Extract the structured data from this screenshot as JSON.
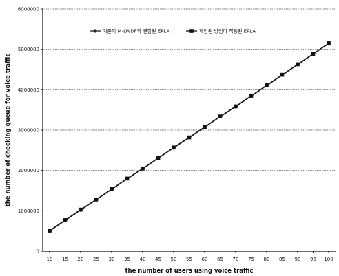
{
  "chart_data": {
    "type": "line",
    "title": "",
    "xlabel": "the number of users using voice traffic",
    "ylabel": "the number of checking queue for voice traffic",
    "x": [
      10,
      15,
      20,
      25,
      30,
      35,
      40,
      45,
      50,
      55,
      60,
      65,
      70,
      75,
      80,
      85,
      90,
      95,
      100
    ],
    "ylim": [
      0,
      6000000
    ],
    "yticks": [
      "0",
      "1000000",
      "2000000",
      "3000000",
      "4000000",
      "5000000",
      "6000000"
    ],
    "grid": "horizontal",
    "legend_position": "top",
    "series": [
      {
        "name": "기존의 M-LWDF와 결합된 EPLA",
        "marker": "diamond",
        "color": "#222222",
        "values": [
          500000,
          760000,
          1020000,
          1270000,
          1530000,
          1790000,
          2040000,
          2300000,
          2560000,
          2810000,
          3070000,
          3330000,
          3580000,
          3840000,
          4100000,
          4360000,
          4620000,
          4880000,
          5140000
        ]
      },
      {
        "name": "제안된 방법이 적용된 EPLA",
        "marker": "square",
        "color": "#111111",
        "values": [
          510000,
          770000,
          1030000,
          1280000,
          1540000,
          1800000,
          2050000,
          2310000,
          2570000,
          2820000,
          3080000,
          3340000,
          3590000,
          3850000,
          4110000,
          4370000,
          4630000,
          4890000,
          5150000
        ]
      }
    ]
  }
}
